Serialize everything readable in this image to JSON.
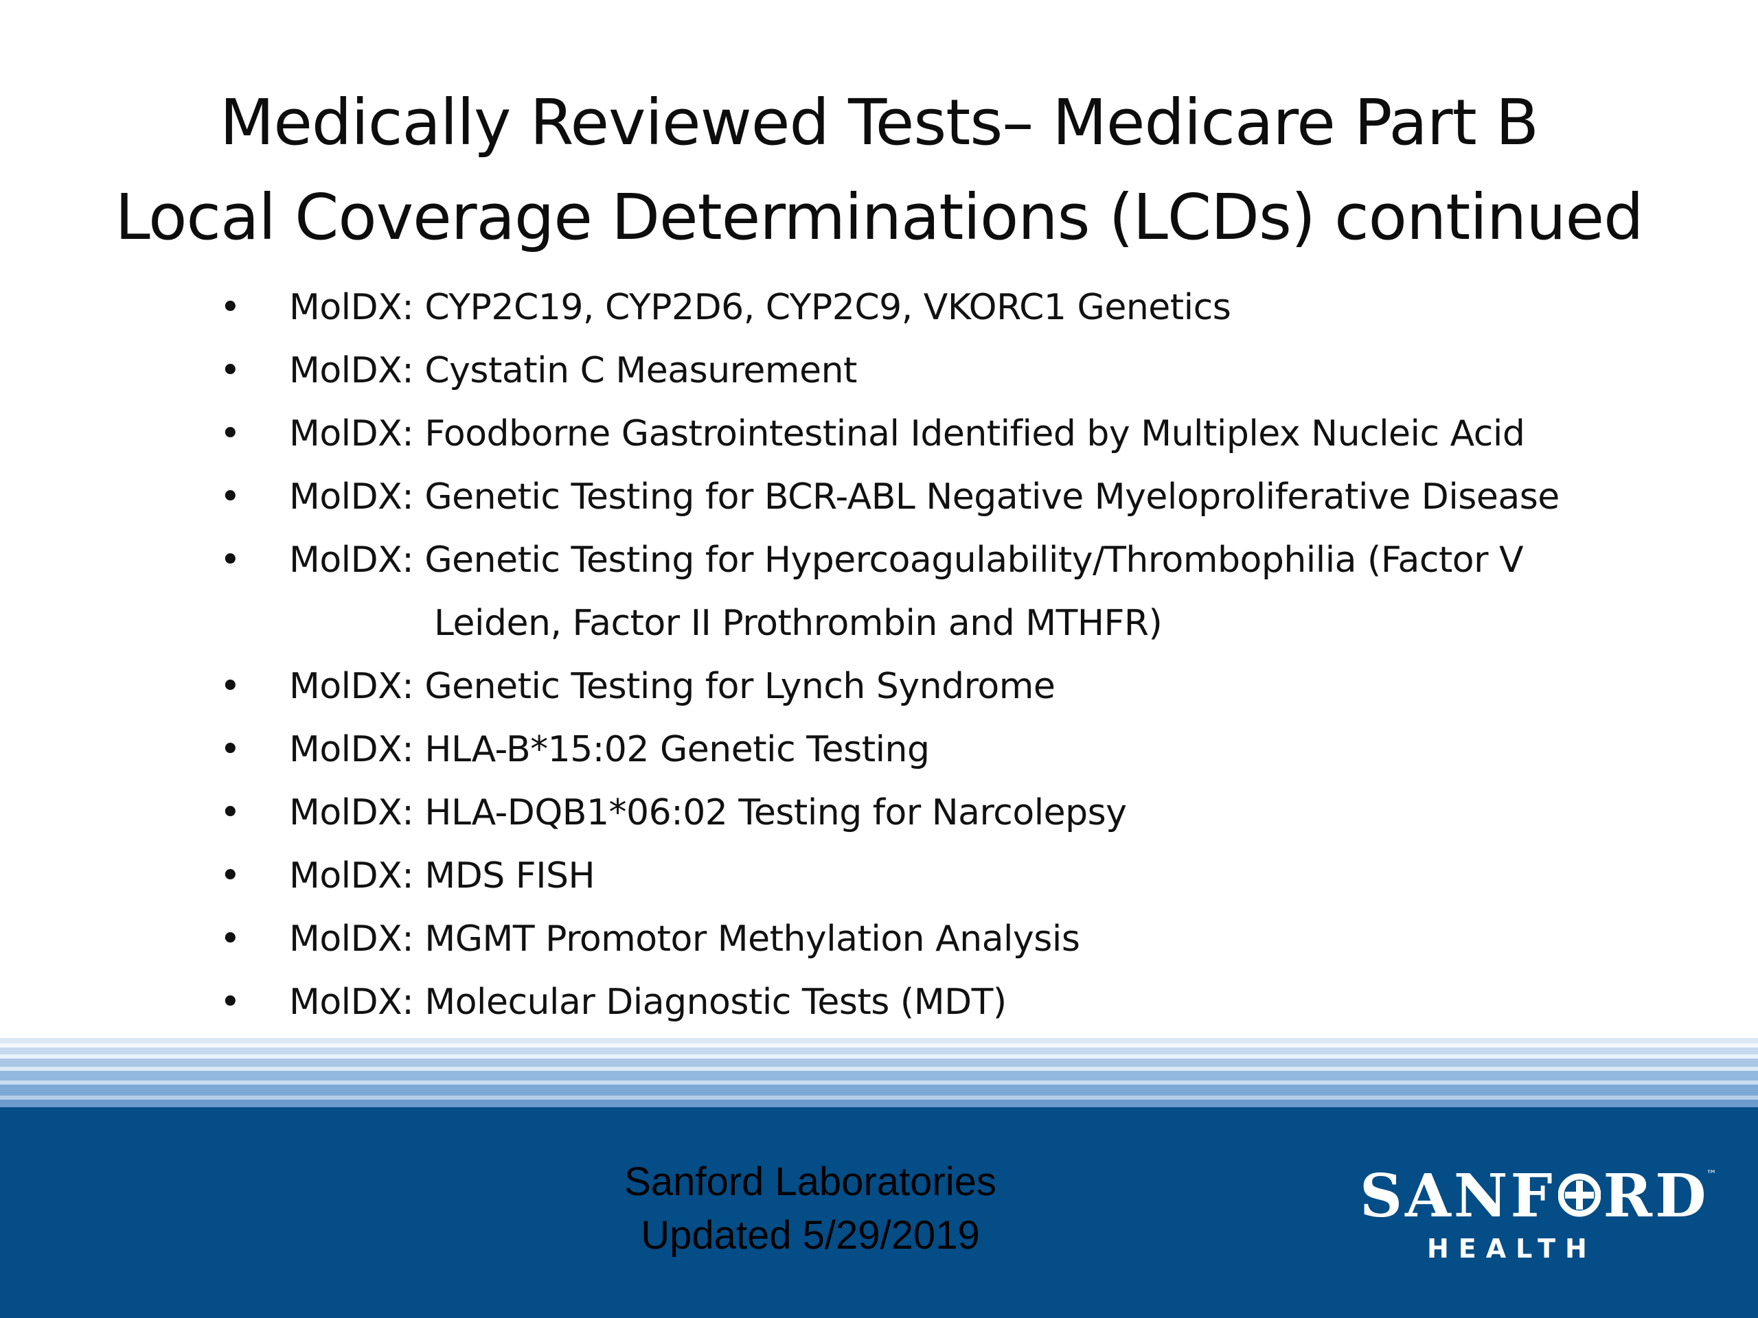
{
  "slide": {
    "title_line1": "Medically Reviewed Tests– Medicare Part B",
    "title_line2": "Local Coverage Determinations (LCDs) continued",
    "bullet_char": "•",
    "items": [
      {
        "text": "MolDX: CYP2C19, CYP2D6, CYP2C9, VKORC1 Genetics"
      },
      {
        "text": "MolDX: Cystatin C Measurement"
      },
      {
        "text": "MolDX: Foodborne Gastrointestinal Identified by Multiplex Nucleic Acid"
      },
      {
        "text": "MolDX: Genetic Testing for BCR-ABL Negative Myeloproliferative Disease"
      },
      {
        "text": "MolDX: Genetic Testing for Hypercoagulability/Thrombophilia (Factor V",
        "continuation": "Leiden, Factor II Prothrombin and MTHFR)"
      },
      {
        "text": "MolDX: Genetic Testing for Lynch Syndrome"
      },
      {
        "text": "MolDX: HLA-B*15:02 Genetic Testing"
      },
      {
        "text": "MolDX: HLA-DQB1*06:02 Testing for Narcolepsy"
      },
      {
        "text": "MolDX: MDS FISH"
      },
      {
        "text": "MolDX: MGMT Promotor Methylation Analysis"
      },
      {
        "text": "MolDX: Molecular Diagnostic Tests (MDT)"
      }
    ]
  },
  "footer": {
    "line1": "Sanford Laboratories",
    "line2": "Updated 5/29/2019",
    "background_color": "#044d86"
  },
  "logo": {
    "word_left": "SANF",
    "word_right": "RD",
    "tm": "™",
    "sub": "HEALTH",
    "icon": "cross-in-circle-icon"
  }
}
